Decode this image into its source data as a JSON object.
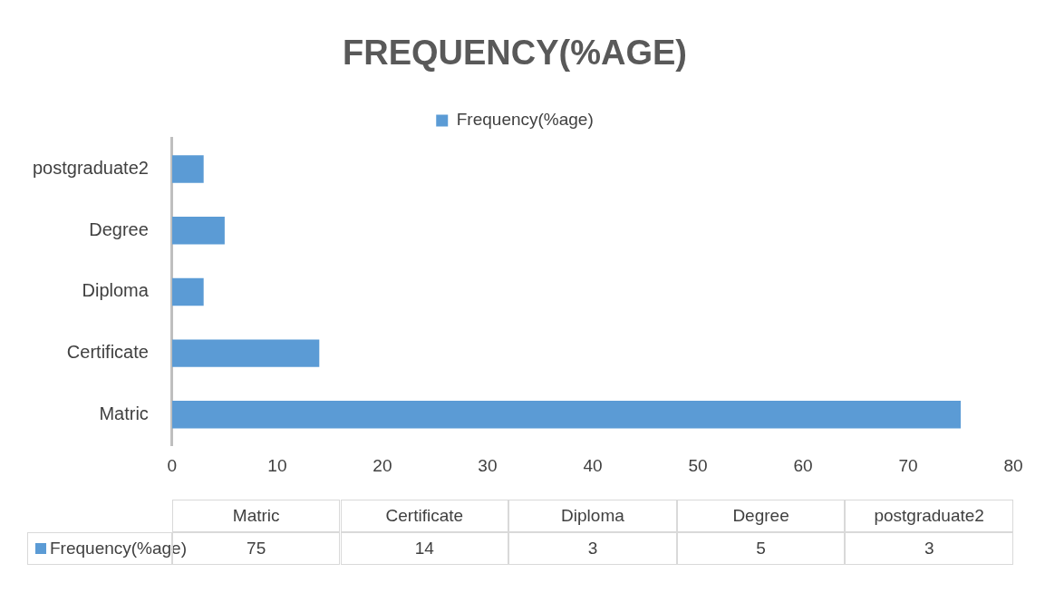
{
  "chart_data": {
    "type": "bar",
    "orientation": "horizontal",
    "title": "FREQUENCY(%AGE)",
    "categories": [
      "postgraduate2",
      "Degree",
      "Diploma",
      "Certificate",
      "Matric"
    ],
    "series": [
      {
        "name": "Frequency(%age)",
        "color": "#5b9bd5",
        "values": [
          3,
          5,
          3,
          14,
          75
        ]
      }
    ],
    "xlim": [
      0,
      80
    ],
    "xticks": [
      0,
      10,
      20,
      30,
      40,
      50,
      60,
      70,
      80
    ],
    "grid": false,
    "legend": "top",
    "annotations": [
      "75",
      "14",
      "3",
      "5",
      "3"
    ]
  }
}
